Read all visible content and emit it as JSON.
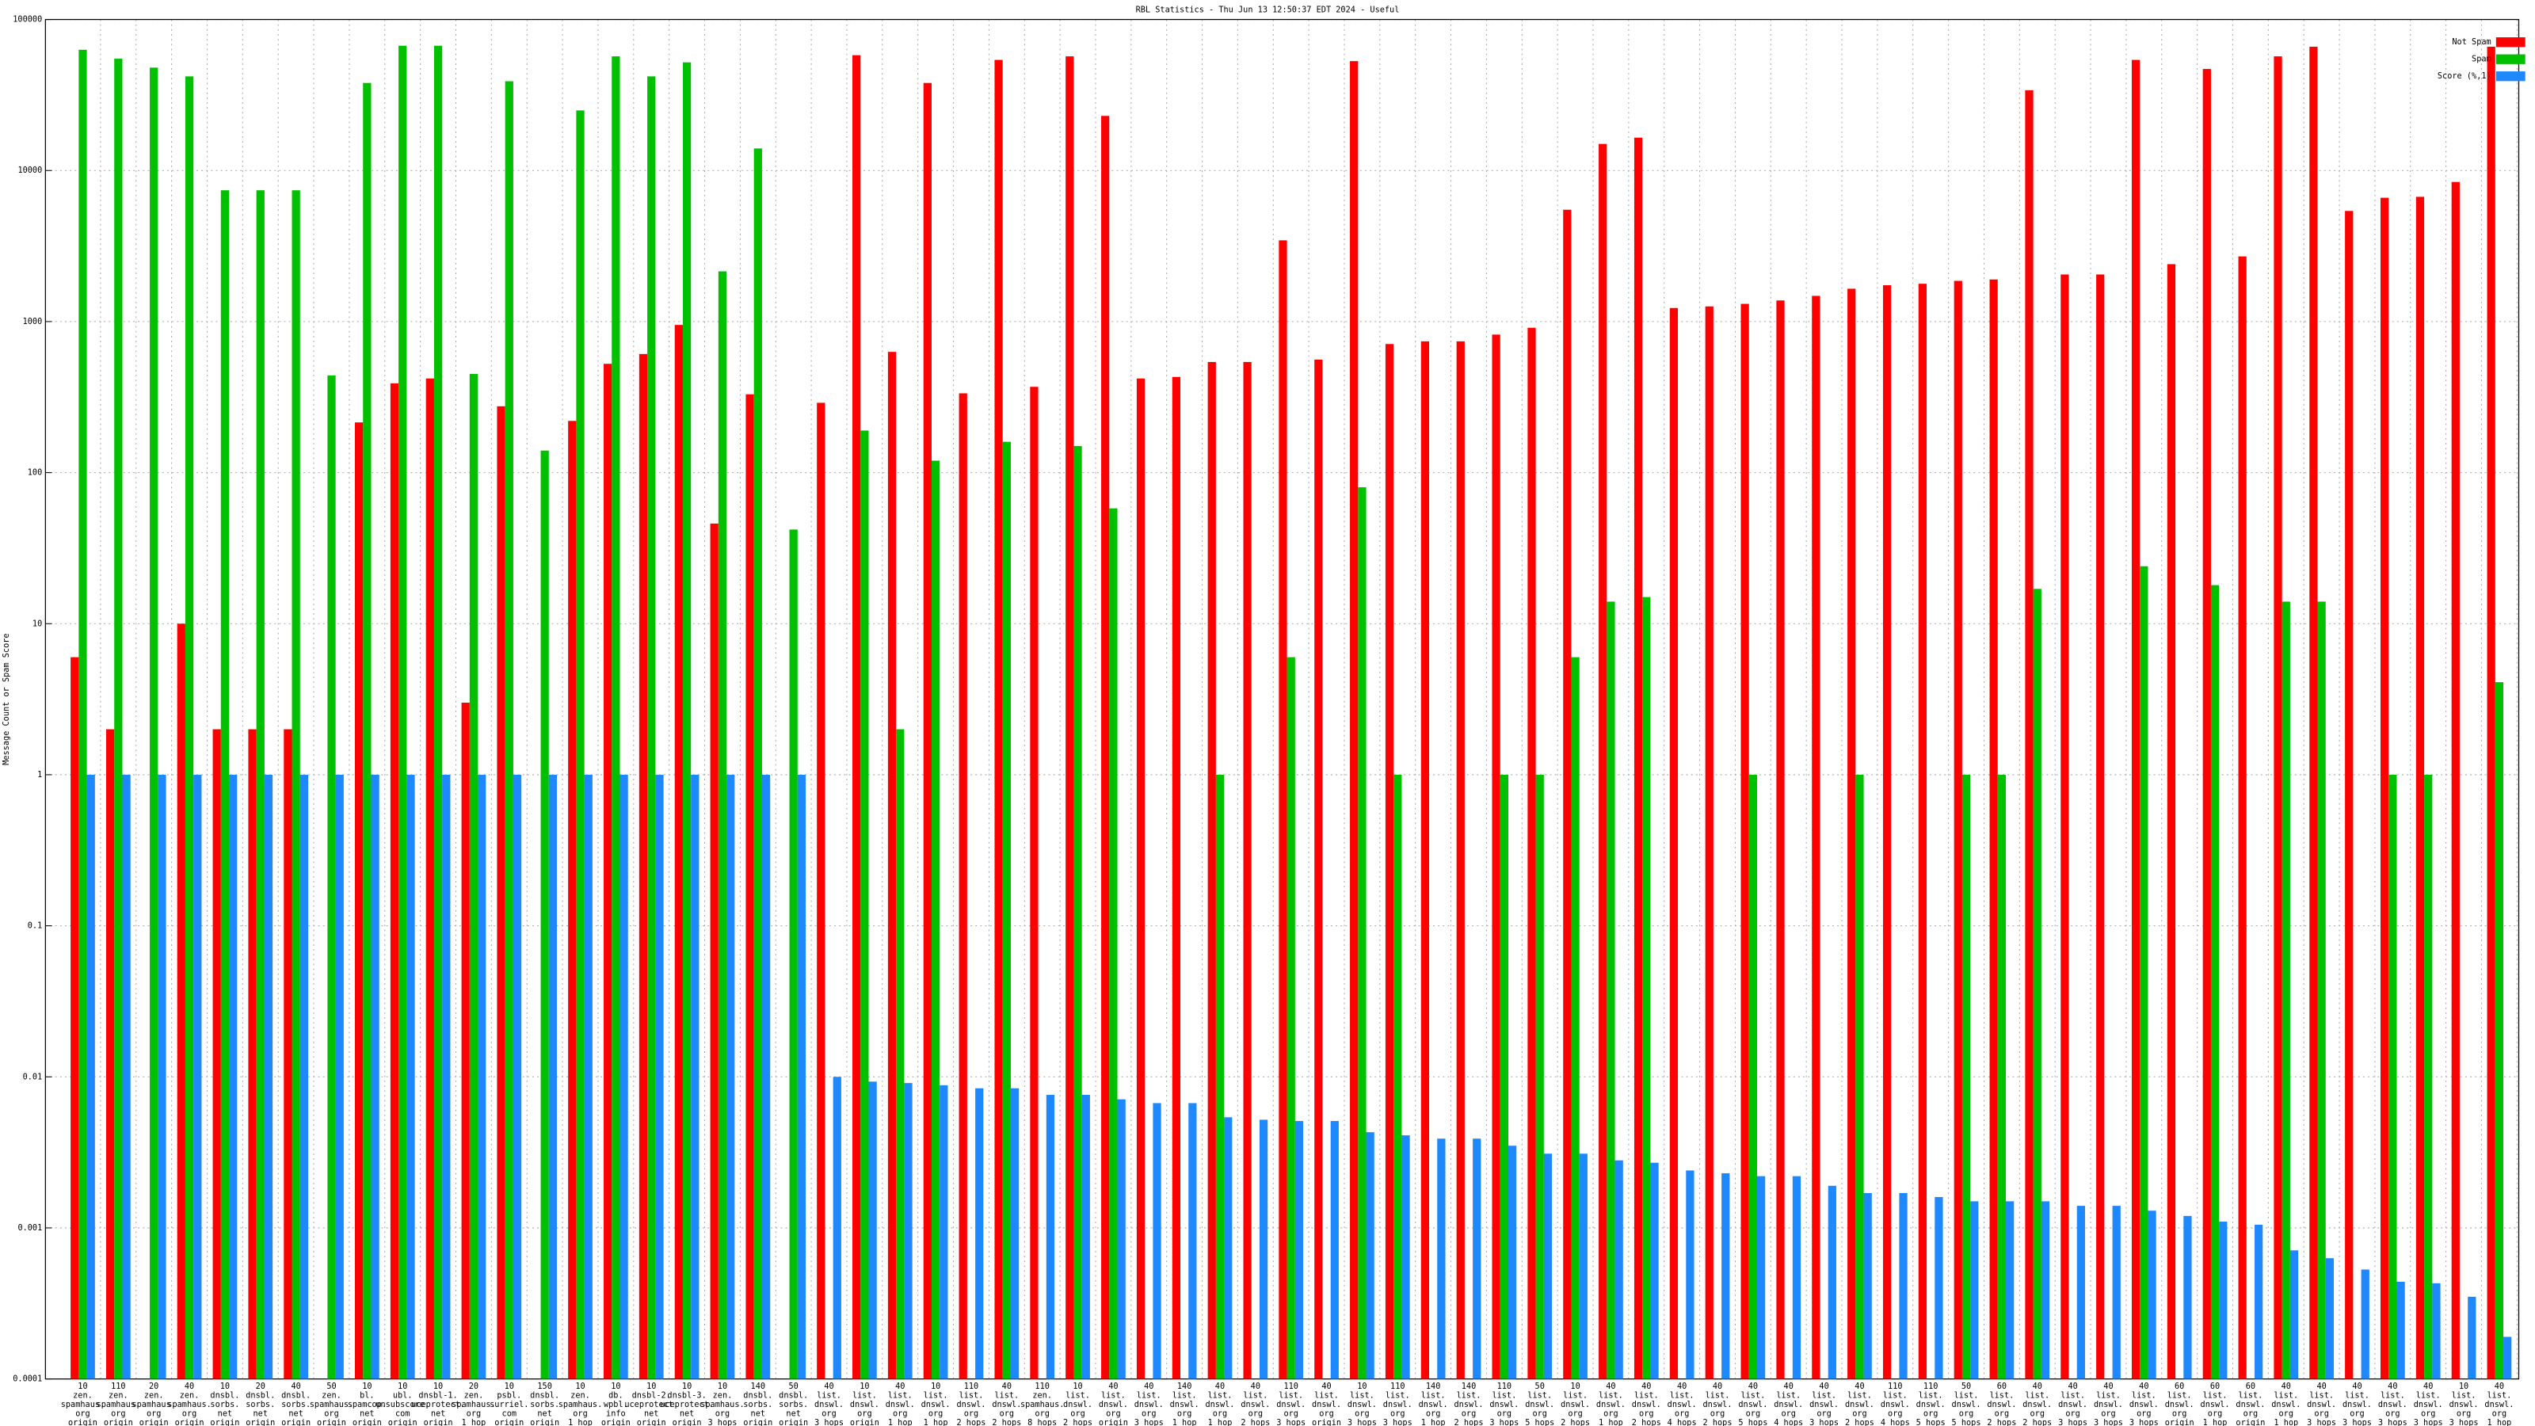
{
  "chart_data": {
    "type": "bar",
    "title": "RBL Statistics - Thu Jun 13 12:50:37 EDT 2024 - Useful",
    "y_label": "Message Count or Spam Score",
    "log_scale": true,
    "grid": true,
    "legend": "top-right",
    "ylim": [
      0.0001,
      100000
    ],
    "yticks": [
      0.0001,
      0.001,
      0.01,
      0.1,
      1,
      10,
      100,
      1000,
      10000,
      100000
    ],
    "categories": [
      [
        "10",
        "zen.",
        "spamhaus.",
        "org",
        "origin"
      ],
      [
        "110",
        "zen.",
        "spamhaus.",
        "org",
        "origin"
      ],
      [
        "20",
        "zen.",
        "spamhaus.",
        "org",
        "origin"
      ],
      [
        "40",
        "zen.",
        "spamhaus.",
        "org",
        "origin"
      ],
      [
        "10",
        "dnsbl.",
        "sorbs.",
        "net",
        "origin"
      ],
      [
        "20",
        "dnsbl.",
        "sorbs.",
        "net",
        "origin"
      ],
      [
        "40",
        "dnsbl.",
        "sorbs.",
        "net",
        "origin"
      ],
      [
        "50",
        "zen.",
        "spamhaus.",
        "org",
        "origin"
      ],
      [
        "10",
        "bl.",
        "spamcop.",
        "net",
        "origin"
      ],
      [
        "10",
        "ubl.",
        "unsubscore.",
        "com",
        "origin"
      ],
      [
        "10",
        "dnsbl-1.",
        "uceprotect.",
        "net",
        "origin"
      ],
      [
        "20",
        "zen.",
        "spamhaus.",
        "org",
        "1 hop"
      ],
      [
        "10",
        "psbl.",
        "surriel.",
        "com",
        "origin"
      ],
      [
        "150",
        "dnsbl.",
        "sorbs.",
        "net",
        "origin"
      ],
      [
        "10",
        "zen.",
        "spamhaus.",
        "org",
        "1 hop"
      ],
      [
        "10",
        "db.",
        "wpbl.",
        "info",
        "origin"
      ],
      [
        "10",
        "dnsbl-2.",
        "uceprotect.",
        "net",
        "origin"
      ],
      [
        "10",
        "dnsbl-3.",
        "uceprotect.",
        "net",
        "origin"
      ],
      [
        "10",
        "zen.",
        "spamhaus.",
        "org",
        "3 hops"
      ],
      [
        "140",
        "dnsbl.",
        "sorbs.",
        "net",
        "origin"
      ],
      [
        "50",
        "dnsbl.",
        "sorbs.",
        "net",
        "origin"
      ],
      [
        "40",
        "list.",
        "dnswl.",
        "org",
        "3 hops"
      ],
      [
        "10",
        "list.",
        "dnswl.",
        "org",
        "origin"
      ],
      [
        "40",
        "list.",
        "dnswl.",
        "org",
        "1 hop"
      ],
      [
        "10",
        "list.",
        "dnswl.",
        "org",
        "1 hop"
      ],
      [
        "110",
        "list.",
        "dnswl.",
        "org",
        "2 hops"
      ],
      [
        "40",
        "list.",
        "dnswl.",
        "org",
        "2 hops"
      ],
      [
        "110",
        "zen.",
        "spamhaus.",
        "org",
        "8 hops"
      ],
      [
        "10",
        "list.",
        "dnswl.",
        "org",
        "2 hops"
      ],
      [
        "40",
        "list.",
        "dnswl.",
        "org",
        "origin"
      ],
      [
        "40",
        "list.",
        "dnswl.",
        "org",
        "3 hops"
      ],
      [
        "140",
        "list.",
        "dnswl.",
        "org",
        "1 hop"
      ],
      [
        "40",
        "list.",
        "dnswl.",
        "org",
        "1 hop"
      ],
      [
        "40",
        "list.",
        "dnswl.",
        "org",
        "2 hops"
      ],
      [
        "110",
        "list.",
        "dnswl.",
        "org",
        "3 hops"
      ],
      [
        "40",
        "list.",
        "dnswl.",
        "org",
        "origin"
      ],
      [
        "10",
        "list.",
        "dnswl.",
        "org",
        "3 hops"
      ],
      [
        "110",
        "list.",
        "dnswl.",
        "org",
        "3 hops"
      ],
      [
        "140",
        "list.",
        "dnswl.",
        "org",
        "1 hop"
      ],
      [
        "140",
        "list.",
        "dnswl.",
        "org",
        "2 hops"
      ],
      [
        "110",
        "list.",
        "dnswl.",
        "org",
        "3 hops"
      ],
      [
        "50",
        "list.",
        "dnswl.",
        "org",
        "5 hops"
      ],
      [
        "10",
        "list.",
        "dnswl.",
        "org",
        "2 hops"
      ],
      [
        "40",
        "list.",
        "dnswl.",
        "org",
        "1 hop"
      ],
      [
        "40",
        "list.",
        "dnswl.",
        "org",
        "2 hops"
      ],
      [
        "40",
        "list.",
        "dnswl.",
        "org",
        "4 hops"
      ],
      [
        "40",
        "list.",
        "dnswl.",
        "org",
        "2 hops"
      ],
      [
        "40",
        "list.",
        "dnswl.",
        "org",
        "5 hops"
      ],
      [
        "40",
        "list.",
        "dnswl.",
        "org",
        "4 hops"
      ],
      [
        "40",
        "list.",
        "dnswl.",
        "org",
        "3 hops"
      ],
      [
        "40",
        "list.",
        "dnswl.",
        "org",
        "2 hops"
      ],
      [
        "110",
        "list.",
        "dnswl.",
        "org",
        "4 hops"
      ],
      [
        "110",
        "list.",
        "dnswl.",
        "org",
        "5 hops"
      ],
      [
        "50",
        "list.",
        "dnswl.",
        "org",
        "5 hops"
      ],
      [
        "60",
        "list.",
        "dnswl.",
        "org",
        "2 hops"
      ],
      [
        "40",
        "list.",
        "dnswl.",
        "org",
        "2 hops"
      ],
      [
        "40",
        "list.",
        "dnswl.",
        "org",
        "3 hops"
      ],
      [
        "40",
        "list.",
        "dnswl.",
        "org",
        "3 hops"
      ],
      [
        "40",
        "list.",
        "dnswl.",
        "org",
        "3 hops"
      ],
      [
        "60",
        "list.",
        "dnswl.",
        "org",
        "origin"
      ],
      [
        "60",
        "list.",
        "dnswl.",
        "org",
        "1 hop"
      ],
      [
        "60",
        "list.",
        "dnswl.",
        "org",
        "origin"
      ],
      [
        "40",
        "list.",
        "dnswl.",
        "org",
        "1 hop"
      ],
      [
        "40",
        "list.",
        "dnswl.",
        "org",
        "3 hops"
      ],
      [
        "40",
        "list.",
        "dnswl.",
        "org",
        "3 hops"
      ],
      [
        "40",
        "list.",
        "dnswl.",
        "org",
        "3 hops"
      ],
      [
        "40",
        "list.",
        "dnswl.",
        "org",
        "3 hops"
      ],
      [
        "10",
        "list.",
        "dnswl.",
        "org",
        "3 hops"
      ],
      [
        "40",
        "list.",
        "dnswl.",
        "org",
        "1 hop"
      ]
    ],
    "series": [
      {
        "name": "Not Spam",
        "color": "#ff0000",
        "values": [
          6,
          2,
          null,
          10,
          2,
          2,
          2,
          null,
          215,
          390,
          420,
          3,
          275,
          null,
          220,
          525,
          610,
          950,
          46,
          330,
          null,
          290,
          58000,
          630,
          38000,
          335,
          54000,
          370,
          57000,
          23000,
          420,
          430,
          540,
          540,
          3450,
          560,
          53000,
          710,
          740,
          740,
          820,
          910,
          5500,
          15000,
          16500,
          1230,
          1260,
          1310,
          1380,
          1480,
          1650,
          1740,
          1780,
          1860,
          1900,
          34000,
          2050,
          2050,
          54000,
          2400,
          47000,
          2700,
          57000,
          66000,
          5400,
          6600,
          6700,
          8400,
          66000
        ]
      },
      {
        "name": "Spam",
        "color": "#00c000",
        "values": [
          63000,
          55000,
          48000,
          42000,
          7400,
          7400,
          7400,
          440,
          38000,
          67000,
          67000,
          450,
          39000,
          140,
          25000,
          57000,
          42000,
          52000,
          2150,
          14000,
          42,
          null,
          190,
          2,
          120,
          null,
          160,
          null,
          150,
          58,
          null,
          null,
          1,
          null,
          6,
          null,
          80,
          1,
          null,
          null,
          1,
          1,
          6,
          14,
          15,
          null,
          null,
          1,
          null,
          null,
          1,
          null,
          null,
          1,
          1,
          17,
          null,
          null,
          24,
          null,
          18,
          null,
          14,
          14,
          null,
          1,
          1,
          null,
          4.1
        ]
      },
      {
        "name": "Score (%,1)",
        "color": "#1e88ff",
        "values": [
          1,
          1,
          1,
          1,
          1,
          1,
          1,
          1,
          1,
          1,
          1,
          1,
          1,
          1,
          1,
          1,
          1,
          1,
          1,
          1,
          1,
          0.01,
          0.0093,
          0.0091,
          0.0088,
          0.0084,
          0.0084,
          0.0076,
          0.0076,
          0.0071,
          0.0067,
          0.0067,
          0.0054,
          0.0052,
          0.0051,
          0.0051,
          0.0043,
          0.0041,
          0.0039,
          0.0039,
          0.0035,
          0.0031,
          0.0031,
          0.0028,
          0.0027,
          0.0024,
          0.0023,
          0.0022,
          0.0022,
          0.0019,
          0.0017,
          0.0017,
          0.0016,
          0.0015,
          0.0015,
          0.0015,
          0.0014,
          0.0014,
          0.0013,
          0.0012,
          0.0011,
          0.00105,
          0.00071,
          0.00063,
          0.00053,
          0.00044,
          0.00043,
          0.00035,
          0.00019
        ]
      }
    ]
  }
}
